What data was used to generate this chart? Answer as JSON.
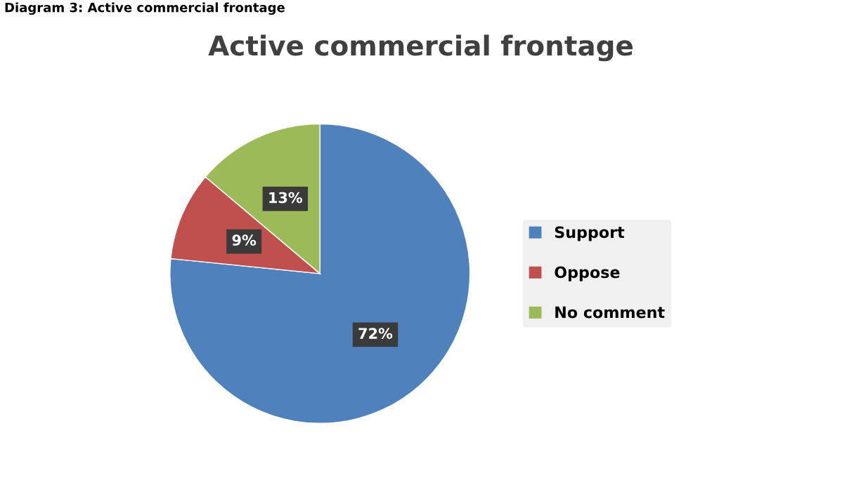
{
  "chart_data": {
    "type": "pie",
    "title": "Active commercial frontage",
    "annotations": [
      "Diagram 3: Active commercial frontage"
    ],
    "categories": [
      "Support",
      "Oppose",
      "No comment"
    ],
    "values": [
      72,
      9,
      13
    ],
    "value_labels": [
      "72%",
      "9%",
      "13%"
    ],
    "colors": [
      "#4f81bd",
      "#c0504d",
      "#9bbb59"
    ],
    "legend": "right"
  }
}
